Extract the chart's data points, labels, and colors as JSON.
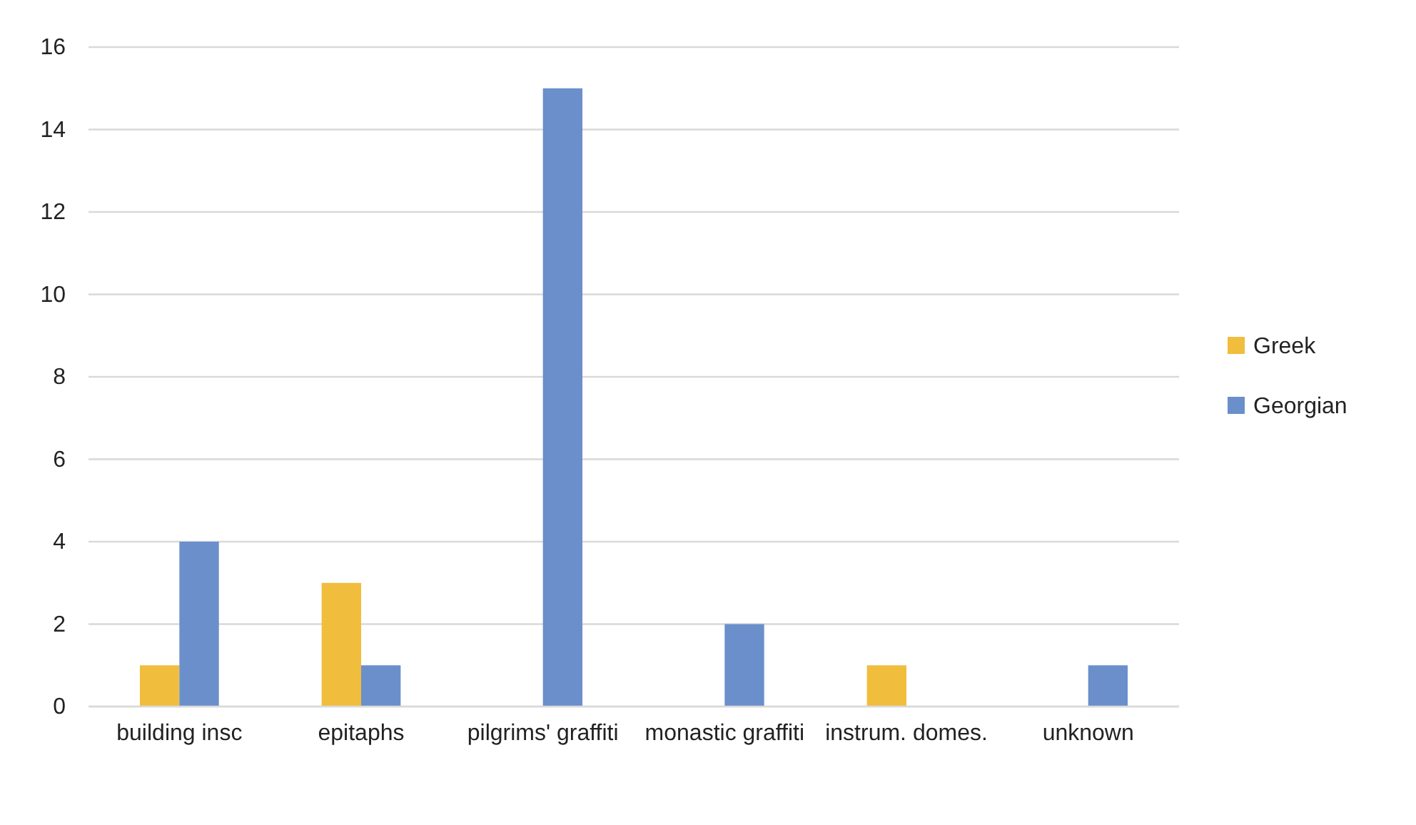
{
  "chart_data": {
    "type": "bar",
    "categories": [
      "building insc",
      "epitaphs",
      "pilgrims' graffiti",
      "monastic graffiti",
      "instrum. domes.",
      "unknown"
    ],
    "series": [
      {
        "name": "Greek",
        "color": "#f0bd3d",
        "values": [
          1,
          3,
          0,
          0,
          1,
          0
        ]
      },
      {
        "name": "Georgian",
        "color": "#6a8fcb",
        "values": [
          4,
          1,
          15,
          2,
          0,
          1
        ]
      }
    ],
    "ylim": [
      0,
      16
    ],
    "yticks": [
      0,
      2,
      4,
      6,
      8,
      10,
      12,
      14,
      16
    ],
    "grid": "y",
    "legend": "right"
  }
}
